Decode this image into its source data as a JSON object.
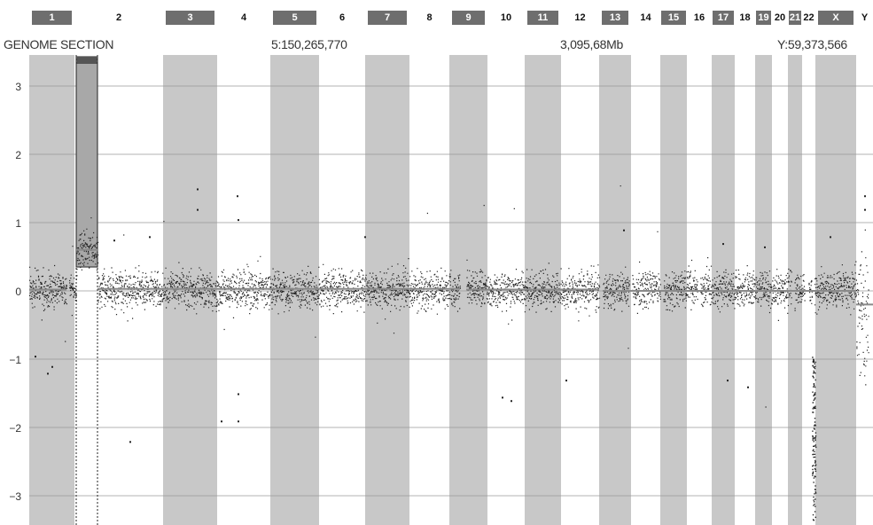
{
  "header": {
    "title": "GENOME SECTION",
    "left_coord": "5:150,265,770",
    "total_size": "3,095,68Mb",
    "right_coord": "Y:59,373,566"
  },
  "chromosomes": [
    {
      "label": "1"
    },
    {
      "label": "2"
    },
    {
      "label": "3"
    },
    {
      "label": "4"
    },
    {
      "label": "5"
    },
    {
      "label": "6"
    },
    {
      "label": "7"
    },
    {
      "label": "8"
    },
    {
      "label": "9"
    },
    {
      "label": "10"
    },
    {
      "label": "11"
    },
    {
      "label": "12"
    },
    {
      "label": "13"
    },
    {
      "label": "14"
    },
    {
      "label": "15"
    },
    {
      "label": "16"
    },
    {
      "label": "17"
    },
    {
      "label": "18"
    },
    {
      "label": "19"
    },
    {
      "label": "20"
    },
    {
      "label": "21"
    },
    {
      "label": "22"
    },
    {
      "label": "X"
    },
    {
      "label": "Y"
    }
  ],
  "colors": {
    "band_gray": "#c8c8c8",
    "tab_dark": "#6e6e6e",
    "point": "#222222",
    "segment_line": "#8a8a8a",
    "highlight_region": "#a8a8a8"
  },
  "chart_data": {
    "type": "scatter",
    "title": "GENOME SECTION",
    "xlabel": "",
    "ylabel": "",
    "ylim": [
      -3.4,
      3.4
    ],
    "yticks": [
      3,
      2,
      1,
      0,
      -1,
      -2,
      -3
    ],
    "grid": true,
    "x_categories": [
      "1",
      "2",
      "3",
      "4",
      "5",
      "6",
      "7",
      "8",
      "9",
      "10",
      "11",
      "12",
      "13",
      "14",
      "15",
      "16",
      "17",
      "18",
      "19",
      "20",
      "21",
      "22",
      "X",
      "Y"
    ],
    "series": [
      {
        "region": "1",
        "baseline": 0.0,
        "spread": 0.22
      },
      {
        "region": "1 (highlighted segment)",
        "baseline": 0.6,
        "spread": 0.18,
        "highlight_top": 3.4
      },
      {
        "region": "2-22",
        "baseline": 0.02,
        "spread": 0.22
      },
      {
        "region": "21 (low segment)",
        "baseline": -1.4,
        "min": -3.4
      },
      {
        "region": "X",
        "baseline": 0.05,
        "spread": 0.22
      },
      {
        "region": "Y",
        "baseline": -0.5,
        "spread": 0.6
      }
    ]
  }
}
